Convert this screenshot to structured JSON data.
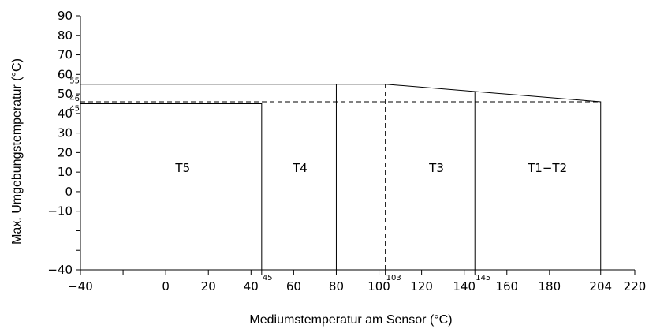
{
  "chart_data": {
    "type": "line",
    "xlabel": "Mediumstemperatur am Sensor (°C)",
    "ylabel": "Max. Umgebungstemperatur (°C)",
    "xlim": [
      -40,
      220
    ],
    "ylim": [
      -40,
      90
    ],
    "x_ticks": [
      -40,
      0,
      20,
      40,
      60,
      80,
      100,
      120,
      140,
      160,
      180,
      204,
      220
    ],
    "x_minor_ticks": [
      -20
    ],
    "y_ticks": [
      -40,
      -10,
      0,
      10,
      20,
      30,
      40,
      50,
      60,
      70,
      80,
      90
    ],
    "y_minor_ticks": [
      -30,
      -20
    ],
    "grid": false,
    "x_markers": [
      {
        "label": "45",
        "x": 45
      },
      {
        "label": "103",
        "x": 103
      },
      {
        "label": "145",
        "x": 145
      }
    ],
    "y_markers": [
      {
        "label": "55",
        "y": 55
      },
      {
        "label": "46",
        "y": 46
      },
      {
        "label": "45",
        "y": 45
      }
    ],
    "boundary_solid": [
      [
        -40,
        55
      ],
      [
        103,
        55
      ],
      [
        204,
        46
      ],
      [
        204,
        -40
      ]
    ],
    "boundary_t5": [
      [
        -40,
        45
      ],
      [
        45,
        45
      ],
      [
        45,
        -40
      ]
    ],
    "divider_lines": [
      {
        "x": [
          80,
          80
        ],
        "y": [
          -40,
          55
        ]
      },
      {
        "x": [
          145,
          145
        ],
        "y": [
          -40,
          51
        ]
      }
    ],
    "dashed_lines": [
      {
        "x": [
          -40,
          204
        ],
        "y": [
          46,
          46
        ]
      },
      {
        "x": [
          103,
          103
        ],
        "y": [
          -40,
          55
        ]
      }
    ],
    "zones": [
      {
        "label": "T5",
        "x": 8,
        "y": 12
      },
      {
        "label": "T4",
        "x": 63,
        "y": 12
      },
      {
        "label": "T3",
        "x": 127,
        "y": 12
      },
      {
        "label": "T1-T2",
        "x": 179,
        "y": 12
      }
    ]
  }
}
